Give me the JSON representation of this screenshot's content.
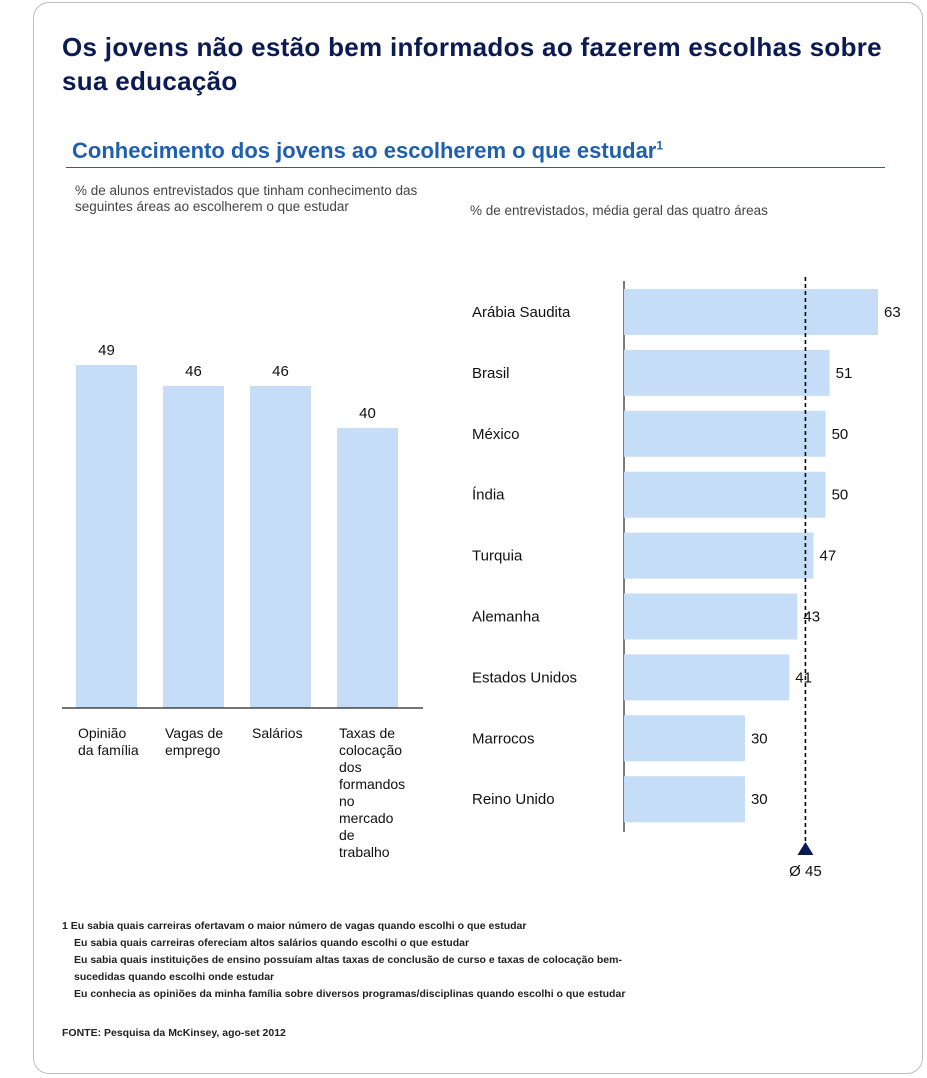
{
  "title": "Os jovens não estão bem informados ao fazerem escolhas sobre sua educação",
  "subtitle": "Conhecimento dos jovens ao escolherem o que estudar",
  "subtitle_sup": "1",
  "left_note": "% de alunos entrevistados que tinham conhecimento das seguintes áreas  ao escolherem o que estudar",
  "right_note": "% de entrevistados, média geral das quatro áreas",
  "colors": {
    "bar": "#c6ddf7",
    "title": "#0b1a52",
    "subtitle": "#1f5fb0",
    "axis": "#222222"
  },
  "chart_data": [
    {
      "type": "bar",
      "orientation": "vertical",
      "ylabel": "% de alunos entrevistados que tinham conhecimento das seguintes áreas  ao escolherem o que estudar",
      "categories": [
        [
          "Opinião",
          "da família"
        ],
        [
          "Vagas de",
          "emprego"
        ],
        [
          "Salários"
        ],
        [
          "Taxas de",
          "colocação",
          "dos",
          "formandos",
          "no",
          "mercado",
          "de",
          "trabalho"
        ]
      ],
      "values": [
        49,
        46,
        46,
        40
      ],
      "value_labels": [
        "49",
        "46",
        "46",
        "40"
      ],
      "ylim": [
        0,
        49
      ],
      "grid": false
    },
    {
      "type": "bar",
      "orientation": "horizontal",
      "xlabel": "% de entrevistados, média geral das quatro áreas",
      "categories": [
        "Arábia Saudita",
        "Brasil",
        "México",
        "Índia",
        "Turquia",
        "Alemanha",
        "Estados Unidos",
        "Marrocos",
        "Reino Unido"
      ],
      "values": [
        63,
        51,
        50,
        50,
        47,
        43,
        41,
        30,
        30
      ],
      "value_labels": [
        "63",
        "51",
        "50",
        "50",
        "47",
        "43",
        "41",
        "30",
        "30"
      ],
      "xlim": [
        0,
        63
      ],
      "average": 45,
      "average_label": "Ø 45",
      "grid": false
    }
  ],
  "footnotes": [
    "1 Eu sabia quais carreiras ofertavam o maior número de vagas quando escolhi o que estudar",
    "Eu sabia quais carreiras ofereciam altos salários quando escolhi o que estudar",
    "Eu sabia quais instituições de ensino possuíam altas taxas de conclusão de curso e taxas de colocação bem-",
    "sucedidas quando escolhi onde estudar",
    "Eu conhecia as opiniões da minha família sobre diversos programas/disciplinas quando escolhi o que estudar"
  ],
  "source": "FONTE: Pesquisa da McKinsey, ago-set 2012"
}
